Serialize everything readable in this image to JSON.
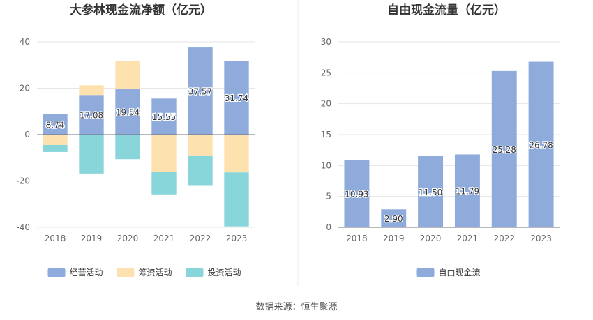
{
  "chart_data": [
    {
      "type": "bar",
      "stacked": true,
      "title": "大参林现金流净额（亿元）",
      "categories": [
        "2018",
        "2019",
        "2020",
        "2021",
        "2022",
        "2023"
      ],
      "ylim": [
        -40,
        40
      ],
      "yticks": [
        -40,
        -20,
        0,
        20,
        40
      ],
      "grid": true,
      "legend": "bottom",
      "series": [
        {
          "name": "经营活动",
          "color": "#8eabdb",
          "values": [
            8.74,
            17.08,
            19.54,
            15.55,
            37.57,
            31.74
          ],
          "labels": [
            "8.74",
            "17.08",
            "19.54",
            "15.55",
            "37.57",
            "31.74"
          ]
        },
        {
          "name": "筹资活动",
          "color": "#fde2b0",
          "values": [
            -4.5,
            4.2,
            12.2,
            -16.0,
            -9.3,
            -16.3
          ]
        },
        {
          "name": "投资活动",
          "color": "#88d6d9",
          "values": [
            -3.0,
            -16.8,
            -10.6,
            -9.8,
            -12.8,
            -23.3
          ]
        }
      ]
    },
    {
      "type": "bar",
      "title": "自由现金流量（亿元）",
      "categories": [
        "2018",
        "2019",
        "2020",
        "2021",
        "2022",
        "2023"
      ],
      "ylim": [
        0,
        30
      ],
      "yticks": [
        0,
        5,
        10,
        15,
        20,
        25,
        30
      ],
      "grid": true,
      "legend": "bottom",
      "series": [
        {
          "name": "自由现金流",
          "color": "#8eabdb",
          "values": [
            10.93,
            2.9,
            11.5,
            11.79,
            25.28,
            26.78
          ],
          "labels": [
            "10.93",
            "2.90",
            "11.50",
            "11.79",
            "25.28",
            "26.78"
          ]
        }
      ]
    }
  ],
  "source": "数据来源：恒生聚源"
}
